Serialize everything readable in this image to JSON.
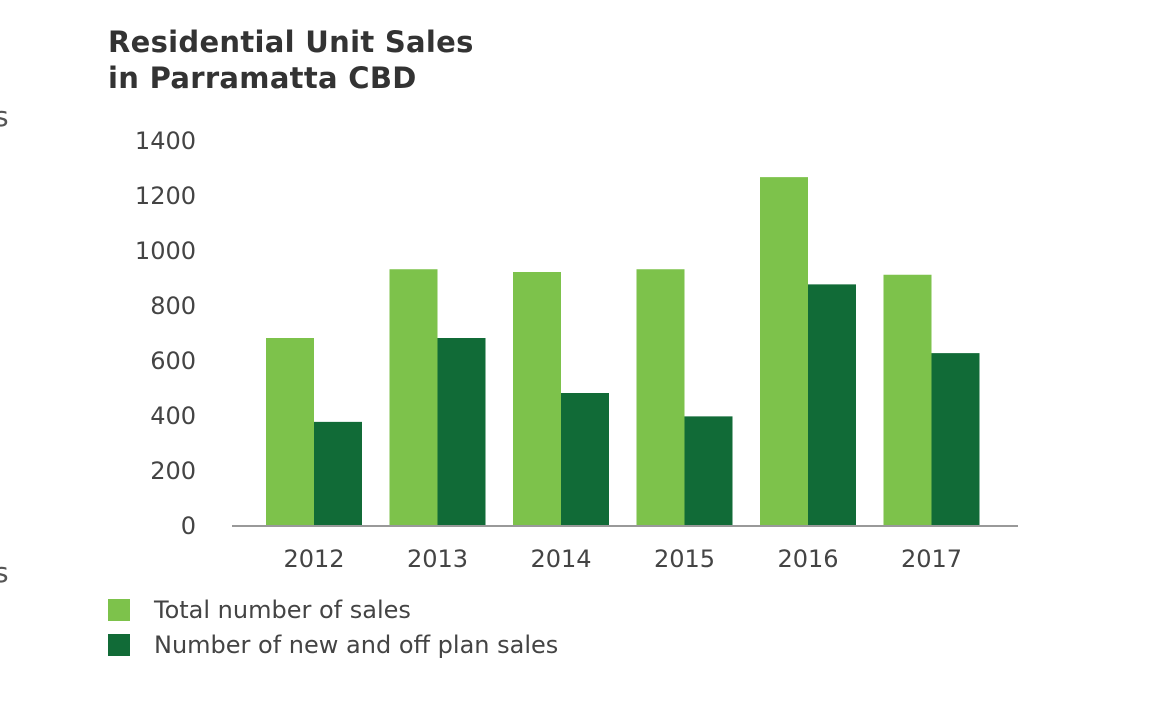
{
  "chart_data": {
    "type": "bar",
    "title": [
      "Residential Unit Sales",
      "in Parramatta CBD"
    ],
    "categories": [
      "2012",
      "2013",
      "2014",
      "2015",
      "2016",
      "2017"
    ],
    "series": [
      {
        "name": "Total number of sales",
        "color": "#7dc24b",
        "values": [
          680,
          930,
          920,
          930,
          1265,
          910
        ]
      },
      {
        "name": "Number of new and off plan sales",
        "color": "#116b37",
        "values": [
          375,
          680,
          480,
          395,
          875,
          625
        ]
      }
    ],
    "yticks": [
      0,
      200,
      400,
      600,
      800,
      1000,
      1200,
      1400
    ],
    "ylim": [
      0,
      1400
    ],
    "xlabel": "",
    "ylabel": "",
    "grid": false,
    "legend": "bottom-left"
  },
  "edge_glyphs": {
    "top": "s",
    "bottom": "s"
  }
}
